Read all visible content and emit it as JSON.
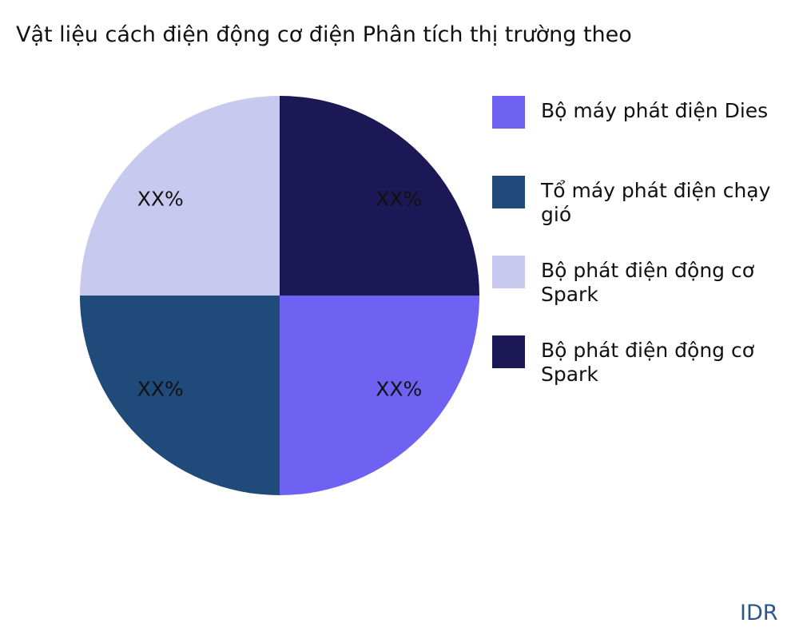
{
  "chart_data": {
    "type": "pie",
    "title": "Vật liệu cách điện động cơ điện Phân tích thị trường theo",
    "categories": [
      "Bộ máy phát điện Dies",
      "Tổ máy phát điện chạy gió",
      "Bộ phát điện động cơ Spark",
      "Bộ phát điện động cơ Spark"
    ],
    "values": [
      25,
      25,
      25,
      25
    ],
    "data_labels": [
      "XX%",
      "XX%",
      "XX%",
      "XX%"
    ],
    "colors": [
      "#6f61f2",
      "#1f4a7a",
      "#c8c9ef",
      "#1c1755"
    ],
    "legend_position": "right",
    "direction": "clockwise"
  },
  "brand": "IDR"
}
